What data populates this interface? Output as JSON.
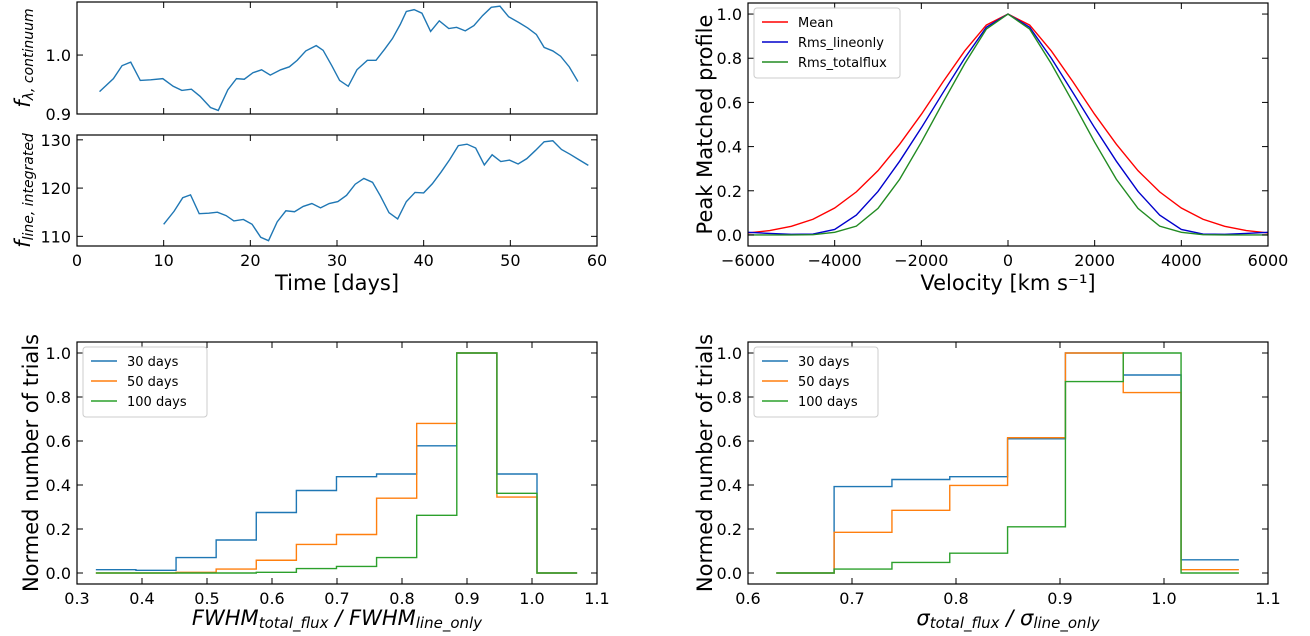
{
  "chart_data": [
    {
      "type": "line",
      "panel": "continuum-lightcurve",
      "xlabel": "",
      "ylabel": "f_{λ, continuum}",
      "xlim": [
        0,
        60
      ],
      "ylim": [
        0.9,
        1.09
      ],
      "xticks": [
        0,
        10,
        20,
        30,
        40,
        50,
        60
      ],
      "yticks": [
        0.9,
        1.0
      ],
      "ytick_labels": [
        "0.9",
        "1.0"
      ],
      "grid": false,
      "series": [
        {
          "color": "#1f77b4",
          "x": [
            2.6,
            4.2,
            5.2,
            6.2,
            7.3,
            8.5,
            9.9,
            11.1,
            12.1,
            13.2,
            14.2,
            15.4,
            16.3,
            17.4,
            18.4,
            19.3,
            20.3,
            21.3,
            22.3,
            23.5,
            24.5,
            25.4,
            26.4,
            27.6,
            28.4,
            29.4,
            30.3,
            31.3,
            32.3,
            33.5,
            34.5,
            35.5,
            36.4,
            37.3,
            38.0,
            38.9,
            39.8,
            40.8,
            41.8,
            42.9,
            43.8,
            44.8,
            45.8,
            46.8,
            47.8,
            48.8,
            49.8,
            51.0,
            52.0,
            53.0,
            53.9,
            54.9,
            55.8,
            56.8,
            57.8
          ],
          "y": [
            0.938,
            0.96,
            0.982,
            0.988,
            0.957,
            0.958,
            0.96,
            0.947,
            0.94,
            0.942,
            0.93,
            0.911,
            0.906,
            0.941,
            0.96,
            0.959,
            0.97,
            0.975,
            0.966,
            0.975,
            0.98,
            0.991,
            1.007,
            1.016,
            1.008,
            0.982,
            0.957,
            0.947,
            0.975,
            0.991,
            0.991,
            1.01,
            1.028,
            1.052,
            1.074,
            1.077,
            1.071,
            1.04,
            1.058,
            1.045,
            1.047,
            1.041,
            1.05,
            1.067,
            1.081,
            1.083,
            1.065,
            1.055,
            1.046,
            1.035,
            1.013,
            1.007,
            0.998,
            0.98,
            0.955
          ]
        }
      ]
    },
    {
      "type": "line",
      "panel": "line-flux-lightcurve",
      "xlabel": "Time [days]",
      "ylabel": "f_{line, integrated}",
      "xlim": [
        0,
        60
      ],
      "ylim": [
        108,
        131
      ],
      "xticks": [
        0,
        10,
        20,
        30,
        40,
        50,
        60
      ],
      "yticks": [
        110,
        120,
        130
      ],
      "grid": false,
      "series": [
        {
          "color": "#1f77b4",
          "x": [
            10.0,
            11.2,
            12.2,
            13.1,
            14.1,
            15.2,
            16.2,
            17.2,
            18.1,
            19.2,
            20.2,
            21.2,
            22.1,
            23.1,
            24.1,
            25.1,
            26.1,
            27.1,
            28.1,
            29.1,
            30.1,
            31.1,
            32.1,
            33.1,
            34.1,
            35.0,
            36.0,
            37.0,
            38.0,
            39.0,
            40.0,
            41.0,
            42.0,
            43.0,
            44.0,
            45.0,
            46.0,
            47.0,
            47.9,
            48.9,
            49.9,
            50.9,
            51.9,
            52.9,
            53.9,
            54.9,
            55.9,
            56.9,
            57.9,
            59.0
          ],
          "y": [
            112.5,
            115.2,
            118.0,
            118.6,
            114.7,
            114.8,
            115.0,
            114.3,
            113.2,
            113.5,
            112.5,
            109.8,
            109.1,
            113.0,
            115.3,
            115.1,
            116.2,
            116.8,
            115.9,
            116.8,
            117.2,
            118.5,
            120.8,
            122.0,
            121.2,
            118.4,
            114.9,
            113.6,
            117.2,
            119.1,
            119.0,
            120.9,
            123.3,
            125.9,
            128.8,
            129.1,
            128.3,
            124.8,
            126.9,
            125.5,
            125.8,
            125.0,
            126.1,
            127.8,
            129.6,
            129.8,
            128.0,
            127.0,
            125.9,
            124.7
          ]
        }
      ]
    },
    {
      "type": "line",
      "panel": "line-profiles",
      "xlabel": "Velocity [km s⁻¹]",
      "ylabel": "Peak Matched profile",
      "xlim": [
        -6000,
        6000
      ],
      "ylim": [
        -0.05,
        1.05
      ],
      "xticks": [
        -6000,
        -4000,
        -2000,
        0,
        2000,
        4000,
        6000
      ],
      "xtick_labels": [
        "−6000",
        "−4000",
        "−2000",
        "0",
        "2000",
        "4000",
        "6000"
      ],
      "yticks": [
        0.0,
        0.2,
        0.4,
        0.6,
        0.8,
        1.0
      ],
      "ytick_labels": [
        "0.0",
        "0.2",
        "0.4",
        "0.6",
        "0.8",
        "1.0"
      ],
      "legend_position": "top-left",
      "grid": false,
      "series": [
        {
          "name": "Mean",
          "color": "#ff0000",
          "x": [
            -6000,
            -5500,
            -5000,
            -4500,
            -4000,
            -3500,
            -3000,
            -2500,
            -2000,
            -1500,
            -1000,
            -500,
            0,
            500,
            1000,
            1500,
            2000,
            2500,
            3000,
            3500,
            4000,
            4500,
            5000,
            5500,
            6000
          ],
          "y": [
            0.009,
            0.02,
            0.039,
            0.071,
            0.122,
            0.195,
            0.291,
            0.411,
            0.546,
            0.693,
            0.833,
            0.95,
            1.0,
            0.95,
            0.833,
            0.693,
            0.546,
            0.411,
            0.291,
            0.195,
            0.122,
            0.071,
            0.039,
            0.02,
            0.009
          ]
        },
        {
          "name": "Rms_lineonly",
          "color": "#0000cc",
          "x": [
            -6000,
            -5500,
            -5000,
            -4500,
            -4000,
            -3500,
            -3000,
            -2500,
            -2000,
            -1500,
            -1000,
            -500,
            0,
            500,
            1000,
            1500,
            2000,
            2500,
            3000,
            3500,
            4000,
            4500,
            5000,
            5500,
            6000
          ],
          "y": [
            0.012,
            0.007,
            0.003,
            0.004,
            0.025,
            0.09,
            0.197,
            0.334,
            0.485,
            0.644,
            0.8,
            0.94,
            1.0,
            0.94,
            0.8,
            0.644,
            0.485,
            0.334,
            0.197,
            0.09,
            0.025,
            0.004,
            0.003,
            0.007,
            0.012
          ]
        },
        {
          "name": "Rms_totalflux",
          "color": "#228b22",
          "x": [
            -6000,
            -5500,
            -5000,
            -4500,
            -4000,
            -3500,
            -3000,
            -2500,
            -2000,
            -1500,
            -1000,
            -500,
            0,
            500,
            1000,
            1500,
            2000,
            2500,
            3000,
            3500,
            4000,
            4500,
            5000,
            5500,
            6000
          ],
          "y": [
            0.0,
            0.0,
            0.0,
            0.001,
            0.012,
            0.04,
            0.12,
            0.252,
            0.42,
            0.6,
            0.775,
            0.932,
            1.0,
            0.932,
            0.775,
            0.6,
            0.42,
            0.252,
            0.12,
            0.04,
            0.012,
            0.001,
            0.0,
            0.0,
            0.0
          ]
        }
      ]
    },
    {
      "type": "line",
      "subtype": "step-histogram",
      "panel": "fwhm-ratio-histogram",
      "xlabel": "FWHM_{total_flux} / FWHM_{line_only}",
      "ylabel": "Normed number of trials",
      "xlim": [
        0.3,
        1.1
      ],
      "ylim": [
        -0.05,
        1.05
      ],
      "xticks": [
        0.3,
        0.4,
        0.5,
        0.6,
        0.7,
        0.8,
        0.9,
        1.0,
        1.1
      ],
      "xtick_labels": [
        "0.3",
        "0.4",
        "0.5",
        "0.6",
        "0.7",
        "0.8",
        "0.9",
        "1.0",
        "1.1"
      ],
      "yticks": [
        0.0,
        0.2,
        0.4,
        0.6,
        0.8,
        1.0
      ],
      "ytick_labels": [
        "0.0",
        "0.2",
        "0.4",
        "0.6",
        "0.8",
        "1.0"
      ],
      "bin_edges": [
        0.329,
        0.3907,
        0.4524,
        0.5141,
        0.5758,
        0.6375,
        0.6992,
        0.7609,
        0.8226,
        0.8843,
        0.946,
        1.0077,
        1.0694
      ],
      "legend_position": "top-left",
      "grid": false,
      "series": [
        {
          "name": "30 days",
          "color": "#1f77b4",
          "values": [
            0.015,
            0.012,
            0.07,
            0.15,
            0.275,
            0.375,
            0.438,
            0.45,
            0.578,
            1.0,
            0.45,
            0.0
          ]
        },
        {
          "name": "50 days",
          "color": "#ff7f0e",
          "values": [
            0.0,
            0.0,
            0.003,
            0.018,
            0.058,
            0.13,
            0.175,
            0.34,
            0.68,
            1.0,
            0.345,
            0.0
          ]
        },
        {
          "name": "100 days",
          "color": "#2ca02c",
          "values": [
            0.0,
            0.0,
            0.0,
            0.0,
            0.003,
            0.02,
            0.03,
            0.07,
            0.262,
            1.0,
            0.362,
            0.0
          ]
        }
      ]
    },
    {
      "type": "line",
      "subtype": "step-histogram",
      "panel": "sigma-ratio-histogram",
      "xlabel": "σ_{total_flux} / σ_{line_only}",
      "ylabel": "Normed number of trials",
      "xlim": [
        0.6,
        1.1
      ],
      "ylim": [
        -0.05,
        1.05
      ],
      "xticks": [
        0.6,
        0.7,
        0.8,
        0.9,
        1.0,
        1.1
      ],
      "xtick_labels": [
        "0.6",
        "0.7",
        "0.8",
        "0.9",
        "1.0",
        "1.1"
      ],
      "yticks": [
        0.0,
        0.2,
        0.4,
        0.6,
        0.8,
        1.0
      ],
      "ytick_labels": [
        "0.0",
        "0.2",
        "0.4",
        "0.6",
        "0.8",
        "1.0"
      ],
      "bin_edges": [
        0.6272,
        0.6828,
        0.7384,
        0.794,
        0.8496,
        0.9052,
        0.9608,
        1.0164,
        1.072
      ],
      "legend_position": "top-left",
      "grid": false,
      "series": [
        {
          "name": "30 days",
          "color": "#1f77b4",
          "values": [
            0.0,
            0.393,
            0.425,
            0.438,
            0.61,
            1.0,
            0.9,
            0.06
          ]
        },
        {
          "name": "50 days",
          "color": "#ff7f0e",
          "values": [
            0.0,
            0.185,
            0.285,
            0.398,
            0.615,
            1.0,
            0.82,
            0.015
          ]
        },
        {
          "name": "100 days",
          "color": "#2ca02c",
          "values": [
            0.0,
            0.018,
            0.048,
            0.09,
            0.21,
            0.87,
            1.0,
            0.0
          ]
        }
      ]
    }
  ]
}
